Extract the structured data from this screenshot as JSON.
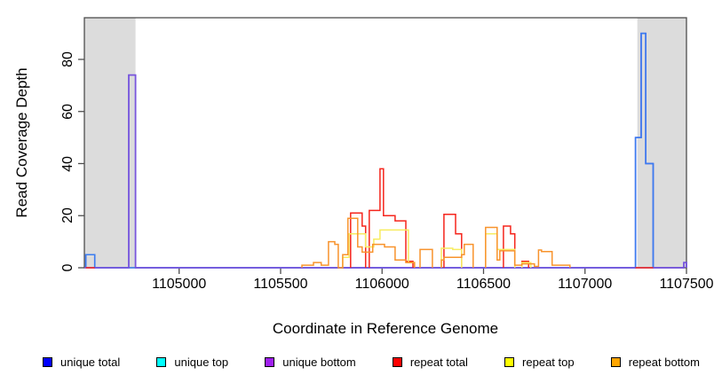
{
  "chart_data": {
    "type": "line",
    "subtype": "step-coverage-histogram",
    "title": "",
    "xlabel": "Coordinate in Reference Genome",
    "ylabel": "Read Coverage Depth",
    "xlim": [
      1104533,
      1107500
    ],
    "ylim": [
      0,
      96
    ],
    "grid": false,
    "legend_position": "bottom",
    "x_ticks": [
      1105000,
      1105500,
      1106000,
      1106500,
      1107000,
      1107500
    ],
    "x_tick_labels": [
      "1105000",
      "1105500",
      "1106000",
      "1106500",
      "1107000",
      "1107500"
    ],
    "y_ticks": [
      0,
      20,
      40,
      60,
      80
    ],
    "y_tick_labels": [
      "0",
      "20",
      "40",
      "60",
      "80"
    ],
    "shade_color": "#DCDCDC",
    "shaded_regions": [
      [
        1104533,
        1104785
      ],
      [
        1107258,
        1107500
      ]
    ],
    "axis_color": "#4d4d4d",
    "series": [
      {
        "name": "unique total",
        "legend_color": "#0000FF",
        "line_color": "#2B2BE8",
        "runs": [
          [
            [
              1104540,
              1104584,
              5
            ],
            [
              1104584,
              1104752,
              0
            ],
            [
              1104752,
              1104785,
              74
            ],
            [
              1104785,
              1107249,
              0
            ],
            [
              1107249,
              1107277,
              50
            ],
            [
              1107277,
              1107299,
              90
            ],
            [
              1107299,
              1107336,
              40
            ],
            [
              1107336,
              1107487,
              0
            ],
            [
              1107487,
              1107500,
              2
            ]
          ]
        ]
      },
      {
        "name": "unique top",
        "legend_color": "#00FFFF",
        "line_color": "#3A7DF0",
        "runs": [
          [
            [
              1104540,
              1104584,
              5
            ],
            [
              1104584,
              1107249,
              0
            ],
            [
              1107249,
              1107277,
              50
            ],
            [
              1107277,
              1107299,
              90
            ],
            [
              1107299,
              1107336,
              40
            ]
          ]
        ]
      },
      {
        "name": "unique bottom",
        "legend_color": "#A020F0",
        "line_color": "#7C55DC",
        "runs": [
          [
            [
              1104533,
              1104752,
              0
            ],
            [
              1104752,
              1104785,
              74
            ],
            [
              1104785,
              1107487,
              0
            ],
            [
              1107487,
              1107500,
              2
            ]
          ]
        ]
      },
      {
        "name": "repeat total",
        "legend_color": "#FF0000",
        "line_color": "#F5251C",
        "runs": [
          [
            [
              1104540,
              1104584,
              0
            ]
          ],
          [
            [
              1105845,
              1105902,
              21
            ],
            [
              1105902,
              1105919,
              16
            ]
          ],
          [
            [
              1105937,
              1105990,
              22
            ],
            [
              1105990,
              1106007,
              38
            ],
            [
              1106007,
              1106064,
              20
            ],
            [
              1106064,
              1106117,
              18
            ],
            [
              1106117,
              1106152,
              2.5
            ]
          ],
          [
            [
              1106305,
              1106362,
              20.5
            ],
            [
              1106362,
              1106392,
              13
            ]
          ],
          [
            [
              1106598,
              1106633,
              16
            ],
            [
              1106633,
              1106654,
              13
            ]
          ],
          [
            [
              1106689,
              1106722,
              2.5
            ]
          ],
          [
            [
              1107249,
              1107336,
              0
            ]
          ]
        ]
      },
      {
        "name": "repeat top",
        "legend_color": "#FFFF00",
        "line_color": "#F7EC60",
        "runs": [
          [
            [
              1105806,
              1105837,
              4
            ],
            [
              1105837,
              1105919,
              13
            ],
            [
              1105919,
              1105959,
              8
            ],
            [
              1105959,
              1105990,
              11
            ],
            [
              1105990,
              1106130,
              14.5
            ],
            [
              1106130,
              1106160,
              2
            ]
          ],
          [
            [
              1106292,
              1106348,
              7.5
            ],
            [
              1106348,
              1106392,
              7
            ]
          ],
          [
            [
              1106510,
              1106567,
              13
            ],
            [
              1106567,
              1106654,
              7
            ]
          ],
          [
            [
              1106689,
              1106733,
              2
            ]
          ]
        ]
      },
      {
        "name": "repeat bottom",
        "legend_color": "#FFA500",
        "line_color": "#F8932C",
        "runs": [
          [
            [
              1105605,
              1105662,
              1
            ],
            [
              1105662,
              1105700,
              2
            ],
            [
              1105700,
              1105736,
              1
            ],
            [
              1105736,
              1105767,
              10
            ],
            [
              1105767,
              1105784,
              9
            ],
            [
              1105784,
              1105806,
              0
            ],
            [
              1105806,
              1105832,
              5
            ],
            [
              1105832,
              1105880,
              19
            ],
            [
              1105880,
              1105902,
              8
            ],
            [
              1105902,
              1105954,
              6
            ],
            [
              1105954,
              1106012,
              9
            ],
            [
              1106012,
              1106064,
              8
            ],
            [
              1106064,
              1106117,
              3
            ],
            [
              1106117,
              1106160,
              2
            ]
          ],
          [
            [
              1106187,
              1106248,
              7
            ]
          ],
          [
            [
              1106292,
              1106305,
              3
            ],
            [
              1106305,
              1106392,
              4
            ],
            [
              1106392,
              1106405,
              5
            ],
            [
              1106405,
              1106449,
              9
            ]
          ],
          [
            [
              1106510,
              1106567,
              15.5
            ],
            [
              1106567,
              1106580,
              3
            ],
            [
              1106580,
              1106654,
              6.5
            ],
            [
              1106654,
              1106689,
              1
            ],
            [
              1106689,
              1106751,
              1.5
            ],
            [
              1106751,
              1106771,
              0.5
            ],
            [
              1106771,
              1106786,
              6.8
            ],
            [
              1106786,
              1106838,
              6.2
            ],
            [
              1106838,
              1106926,
              1
            ]
          ]
        ]
      }
    ]
  }
}
